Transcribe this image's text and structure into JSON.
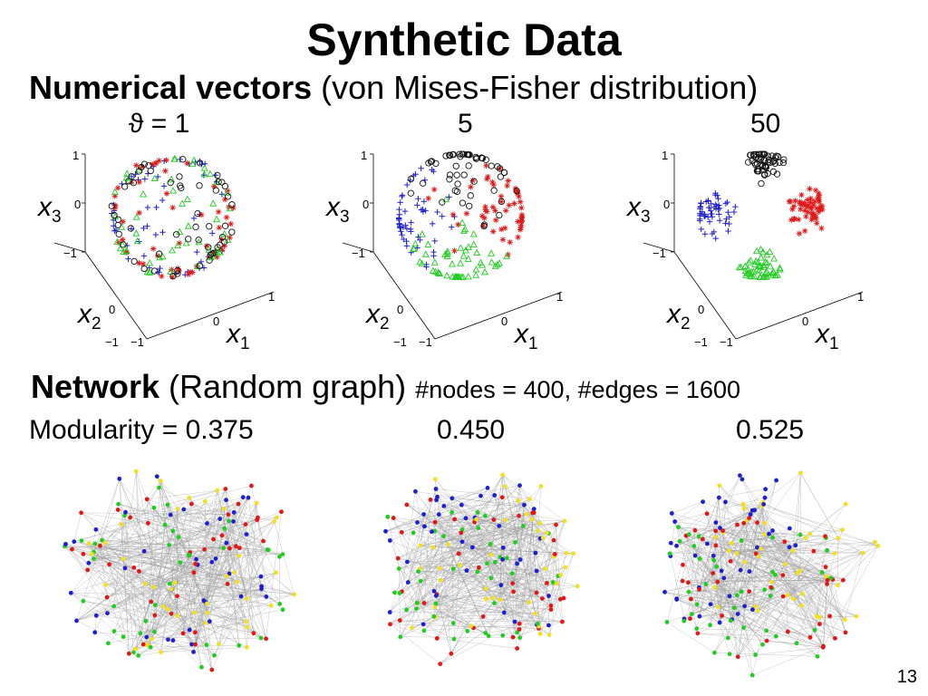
{
  "slide": {
    "title": "Synthetic Data",
    "page_number": "13"
  },
  "section1": {
    "heading_bold": "Numerical vectors",
    "heading_rest": " (von Mises-Fisher distribution)",
    "panel_labels": [
      "ϑ = 1",
      "5",
      "50"
    ],
    "axis": {
      "x1": "x",
      "x1_sub": "1",
      "x2": "x",
      "x2_sub": "2",
      "x3": "x",
      "x3_sub": "3"
    },
    "ticks": {
      "neg": "−1",
      "zero": "0",
      "pos": "1"
    }
  },
  "section2": {
    "heading_bold": "Network",
    "heading_rest": " (Random graph) ",
    "heading_small": "#nodes = 400, #edges = 1600",
    "panel_labels": [
      "Modularity = 0.375",
      "0.450",
      "0.525"
    ]
  },
  "colors": {
    "cluster_blue": "#1f1fd0",
    "cluster_red": "#e01818",
    "cluster_green": "#22cc22",
    "cluster_black": "#111111",
    "cluster_yellow": "#f0e020",
    "edge_gray": "#9a9a9a"
  },
  "chart_data": [
    {
      "type": "scatter",
      "panel": "ϑ = 1",
      "concentration": 1,
      "series": [
        {
          "marker": "+",
          "color": "blue"
        },
        {
          "marker": "*",
          "color": "red"
        },
        {
          "marker": "triangle",
          "color": "green"
        },
        {
          "marker": "circle",
          "color": "black"
        }
      ],
      "xlim": [
        -1,
        1
      ],
      "ylim": [
        -1,
        1
      ],
      "zlim": [
        -1,
        1
      ]
    },
    {
      "type": "scatter",
      "panel": "5",
      "concentration": 5,
      "series": [
        {
          "marker": "+",
          "color": "blue"
        },
        {
          "marker": "*",
          "color": "red"
        },
        {
          "marker": "triangle",
          "color": "green"
        },
        {
          "marker": "circle",
          "color": "black"
        }
      ],
      "xlim": [
        -1,
        1
      ],
      "ylim": [
        -1,
        1
      ],
      "zlim": [
        -1,
        1
      ]
    },
    {
      "type": "scatter",
      "panel": "50",
      "concentration": 50,
      "series": [
        {
          "marker": "+",
          "color": "blue"
        },
        {
          "marker": "*",
          "color": "red"
        },
        {
          "marker": "triangle",
          "color": "green"
        },
        {
          "marker": "circle",
          "color": "black"
        }
      ],
      "xlim": [
        -1,
        1
      ],
      "ylim": [
        -1,
        1
      ],
      "zlim": [
        -1,
        1
      ]
    }
  ]
}
